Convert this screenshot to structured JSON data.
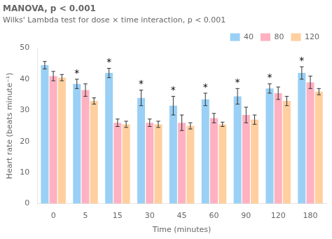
{
  "chart_data": {
    "type": "bar",
    "title": "MANOVA, p < 0.001",
    "subtitle": "Wilks' Lambda test for dose × time interaction, p < 0.001",
    "xlabel": "Time (minutes)",
    "ylabel": "Heart rate (beats minute⁻¹)",
    "categories": [
      "0",
      "5",
      "15",
      "30",
      "45",
      "60",
      "90",
      "120",
      "180"
    ],
    "series": [
      {
        "name": "40",
        "values": [
          44.5,
          38.5,
          42.0,
          34.0,
          31.5,
          33.5,
          34.5,
          37.0,
          42.0
        ],
        "errors": [
          1.2,
          1.5,
          1.5,
          2.5,
          3.0,
          2.0,
          2.5,
          1.5,
          2.0
        ]
      },
      {
        "name": "80",
        "values": [
          41.0,
          36.5,
          26.0,
          26.0,
          26.0,
          27.5,
          28.5,
          35.5,
          39.0
        ],
        "errors": [
          1.5,
          2.0,
          1.2,
          1.2,
          2.5,
          1.5,
          2.5,
          2.0,
          2.0
        ]
      },
      {
        "name": "120",
        "values": [
          40.5,
          33.0,
          25.5,
          25.5,
          25.0,
          25.5,
          27.0,
          33.0,
          36.0
        ],
        "errors": [
          1.0,
          1.0,
          1.0,
          1.0,
          1.0,
          0.7,
          1.5,
          1.5,
          1.0
        ]
      }
    ],
    "annotations": [
      {
        "text": "*",
        "series": "40",
        "category": "5"
      },
      {
        "text": "*",
        "series": "40",
        "category": "15"
      },
      {
        "text": "*",
        "series": "40",
        "category": "30"
      },
      {
        "text": "*",
        "series": "40",
        "category": "45"
      },
      {
        "text": "*",
        "series": "40",
        "category": "60"
      },
      {
        "text": "*",
        "series": "40",
        "category": "90"
      },
      {
        "text": "*",
        "series": "40",
        "category": "120"
      },
      {
        "text": "*",
        "series": "40",
        "category": "180"
      }
    ],
    "ylim": [
      0,
      50
    ],
    "yticks": [
      0,
      10,
      20,
      30,
      40,
      50
    ],
    "grid": false,
    "legend": "upper right"
  }
}
